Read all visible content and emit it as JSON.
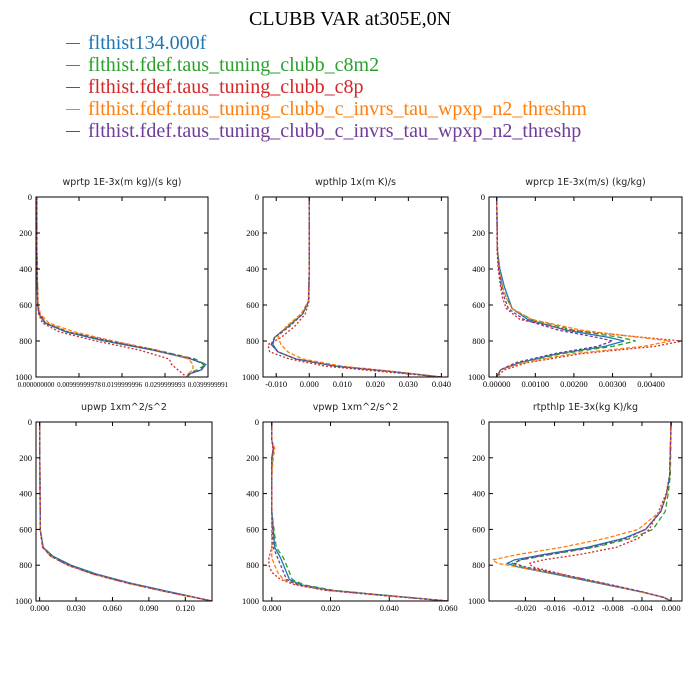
{
  "title": "CLUBB VAR at305E,0N",
  "legend": [
    {
      "label": "flthist134.000f",
      "color": "#1f77b4"
    },
    {
      "label": "flthist.fdef.taus_tuning_clubb_c8m2",
      "color": "#2ca02c"
    },
    {
      "label": "flthist.fdef.taus_tuning_clubb_c8p",
      "color": "#d62728"
    },
    {
      "label": "flthist.fdef.taus_tuning_clubb_c_invrs_tau_wpxp_n2_threshm",
      "color": "#ff7f0e"
    },
    {
      "label": "flthist.fdef.taus_tuning_clubb_c_invrs_tau_wpxp_n2_threshp",
      "color": "#6f3c97"
    }
  ],
  "chart_data": [
    {
      "type": "line",
      "title": "wprtp  1E-3x(m kg)/(s kg)",
      "xlim": [
        0,
        0.04
      ],
      "ylim": [
        1000,
        0
      ],
      "xticks": [
        0,
        0.01,
        0.02,
        0.03,
        0.04
      ],
      "xticklabels": [
        "0.000000000",
        "0.00999999978",
        "0.0199999996",
        "0.0299999993",
        "0.0399999991"
      ],
      "yticks": [
        0,
        200,
        400,
        600,
        800,
        1000
      ],
      "yticklabels": [
        "0",
        "200",
        "400",
        "600",
        "800",
        "1000"
      ],
      "y": [
        0,
        300,
        600,
        650,
        700,
        750,
        800,
        850,
        900,
        930,
        960,
        980,
        1000
      ],
      "series": [
        {
          "values": [
            0.0002,
            0.0002,
            0.0004,
            0.0007,
            0.002,
            0.007,
            0.016,
            0.027,
            0.036,
            0.0395,
            0.0385,
            0.036,
            0.035
          ]
        },
        {
          "values": [
            0.0002,
            0.0002,
            0.0004,
            0.0008,
            0.0023,
            0.0075,
            0.017,
            0.028,
            0.037,
            0.0395,
            0.0375,
            0.0355,
            0.035
          ]
        },
        {
          "values": [
            0.0002,
            0.0002,
            0.0004,
            0.0006,
            0.0015,
            0.0055,
            0.014,
            0.024,
            0.031,
            0.0315,
            0.033,
            0.034,
            0.035
          ]
        },
        {
          "values": [
            0.0002,
            0.0002,
            0.0005,
            0.001,
            0.003,
            0.009,
            0.018,
            0.028,
            0.0355,
            0.0365,
            0.0365,
            0.0355,
            0.035
          ]
        },
        {
          "values": [
            0.0002,
            0.0002,
            0.0004,
            0.0008,
            0.0022,
            0.0075,
            0.017,
            0.0275,
            0.0365,
            0.039,
            0.0385,
            0.036,
            0.035
          ]
        }
      ]
    },
    {
      "type": "line",
      "title": "wpthlp  1x(m K)/s",
      "xlim": [
        -0.014,
        0.042
      ],
      "ylim": [
        1000,
        0
      ],
      "xticks": [
        -0.01,
        0,
        0.01,
        0.02,
        0.03,
        0.04
      ],
      "xticklabels": [
        "-0.010",
        "0.000",
        "0.010",
        "0.020",
        "0.030",
        "0.040"
      ],
      "yticks": [
        0,
        200,
        400,
        600,
        800,
        1000
      ],
      "yticklabels": [
        "0",
        "200",
        "400",
        "600",
        "800",
        "1000"
      ],
      "y": [
        0,
        400,
        580,
        650,
        720,
        780,
        820,
        860,
        900,
        940,
        970,
        1000
      ],
      "series": [
        {
          "values": [
            0,
            0,
            -0.0002,
            -0.002,
            -0.0065,
            -0.0105,
            -0.011,
            -0.0095,
            -0.004,
            0.008,
            0.025,
            0.04
          ]
        },
        {
          "values": [
            0,
            0,
            -0.0002,
            -0.002,
            -0.0065,
            -0.0105,
            -0.0115,
            -0.0095,
            -0.004,
            0.008,
            0.025,
            0.04
          ]
        },
        {
          "values": [
            0,
            0,
            -0.0001,
            -0.0012,
            -0.0045,
            -0.0085,
            -0.0125,
            -0.012,
            -0.006,
            0.005,
            0.022,
            0.04
          ]
        },
        {
          "values": [
            0,
            0,
            -0.0003,
            -0.0025,
            -0.007,
            -0.0095,
            -0.0085,
            -0.0065,
            -0.002,
            0.01,
            0.026,
            0.04
          ]
        },
        {
          "values": [
            0,
            0,
            -0.0002,
            -0.002,
            -0.006,
            -0.0105,
            -0.0115,
            -0.0095,
            -0.004,
            0.008,
            0.025,
            0.04
          ]
        }
      ]
    },
    {
      "type": "line",
      "title": "wprcp  1E-3x(m/s) (kg/kg)",
      "xlim": [
        -0.0002,
        0.0048
      ],
      "ylim": [
        1000,
        0
      ],
      "xticks": [
        0,
        0.001,
        0.002,
        0.003,
        0.004
      ],
      "xticklabels": [
        "0.00000",
        "0.00100",
        "0.00200",
        "0.00300",
        "0.00400"
      ],
      "yticks": [
        0,
        200,
        400,
        600,
        800,
        1000
      ],
      "yticklabels": [
        "0",
        "200",
        "400",
        "600",
        "800",
        "1000"
      ],
      "y": [
        0,
        300,
        400,
        500,
        560,
        620,
        680,
        740,
        780,
        800,
        830,
        870,
        920,
        960,
        1000
      ],
      "series": [
        {
          "values": [
            0,
            2e-05,
            8e-05,
            0.0002,
            0.0003,
            0.0004,
            0.0008,
            0.0018,
            0.0029,
            0.0033,
            0.0028,
            0.0016,
            0.0006,
            0.0001,
            0
          ]
        },
        {
          "values": [
            0,
            2e-05,
            6e-05,
            0.00015,
            0.00025,
            0.0004,
            0.0009,
            0.002,
            0.0032,
            0.0036,
            0.003,
            0.0017,
            0.0006,
            0.0001,
            0
          ]
        },
        {
          "values": [
            0,
            1e-05,
            4e-05,
            0.0001,
            0.00015,
            0.00025,
            0.0006,
            0.0019,
            0.0038,
            0.0048,
            0.0041,
            0.0022,
            0.0008,
            0.0002,
            0
          ]
        },
        {
          "values": [
            0,
            2e-05,
            6e-05,
            0.00015,
            0.00025,
            0.0004,
            0.0009,
            0.0022,
            0.0037,
            0.0045,
            0.0038,
            0.002,
            0.0007,
            0.0001,
            0
          ]
        },
        {
          "values": [
            0,
            2e-05,
            5e-05,
            0.00012,
            0.0002,
            0.0003,
            0.0007,
            0.0016,
            0.0026,
            0.003,
            0.0026,
            0.0015,
            0.0005,
            0.0001,
            0
          ]
        }
      ]
    },
    {
      "type": "line",
      "title": "upwp  1xm^2/s^2",
      "xlim": [
        -0.003,
        0.142
      ],
      "ylim": [
        1000,
        0
      ],
      "xticks": [
        0,
        0.03,
        0.06,
        0.09,
        0.12
      ],
      "xticklabels": [
        "0.000",
        "0.030",
        "0.060",
        "0.090",
        "0.120"
      ],
      "yticks": [
        0,
        200,
        400,
        600,
        800,
        1000
      ],
      "yticklabels": [
        "0",
        "200",
        "400",
        "600",
        "800",
        "1000"
      ],
      "y": [
        0,
        600,
        700,
        750,
        800,
        850,
        900,
        950,
        1000
      ],
      "series": [
        {
          "values": [
            0,
            0.0005,
            0.003,
            0.011,
            0.026,
            0.047,
            0.075,
            0.108,
            0.142
          ]
        },
        {
          "values": [
            0,
            0.0005,
            0.0025,
            0.01,
            0.024,
            0.045,
            0.073,
            0.106,
            0.142
          ]
        },
        {
          "values": [
            0,
            0.0005,
            0.0025,
            0.009,
            0.023,
            0.044,
            0.072,
            0.105,
            0.142
          ]
        },
        {
          "values": [
            0,
            0.0005,
            0.0025,
            0.009,
            0.023,
            0.044,
            0.072,
            0.105,
            0.142
          ]
        },
        {
          "values": [
            0,
            0.0005,
            0.0025,
            0.0095,
            0.024,
            0.045,
            0.073,
            0.106,
            0.142
          ]
        }
      ]
    },
    {
      "type": "line",
      "title": "vpwp  1xm^2/s^2",
      "xlim": [
        -0.003,
        0.06
      ],
      "ylim": [
        1000,
        0
      ],
      "xticks": [
        0,
        0.02,
        0.04,
        0.06
      ],
      "xticklabels": [
        "0.000",
        "0.020",
        "0.040",
        "0.060"
      ],
      "yticks": [
        0,
        200,
        400,
        600,
        800,
        1000
      ],
      "yticklabels": [
        "0",
        "200",
        "400",
        "600",
        "800",
        "1000"
      ],
      "y": [
        0,
        100,
        150,
        200,
        300,
        500,
        700,
        760,
        800,
        840,
        880,
        910,
        940,
        970,
        1000
      ],
      "series": [
        {
          "values": [
            0,
            0,
            0.0006,
            0,
            0,
            0,
            0.001,
            0.003,
            0.004,
            0.005,
            0.006,
            0.01,
            0.02,
            0.04,
            0.06
          ]
        },
        {
          "values": [
            0,
            0,
            0.0005,
            0.0002,
            0,
            0,
            0.0015,
            0.004,
            0.005,
            0.006,
            0.007,
            0.011,
            0.021,
            0.04,
            0.06
          ]
        },
        {
          "values": [
            0,
            0,
            0.0004,
            0,
            0,
            0,
            0,
            -0.001,
            -0.001,
            0,
            0.003,
            0.008,
            0.018,
            0.038,
            0.06
          ]
        },
        {
          "values": [
            0,
            0,
            0.001,
            0.0005,
            0,
            0,
            0,
            0,
            0.001,
            0.002,
            0.004,
            0.009,
            0.019,
            0.039,
            0.06
          ]
        },
        {
          "values": [
            0,
            0,
            0.0005,
            0,
            0,
            0,
            0.0005,
            0.002,
            0.003,
            0.004,
            0.005,
            0.009,
            0.019,
            0.039,
            0.06
          ]
        }
      ]
    },
    {
      "type": "line",
      "title": "rtpthlp  1E-3x(kg K)/kg",
      "xlim": [
        -0.025,
        0.0015
      ],
      "ylim": [
        1000,
        0
      ],
      "xticks": [
        -0.02,
        -0.016,
        -0.012,
        -0.008,
        -0.004,
        0
      ],
      "xticklabels": [
        "-0.020",
        "-0.016",
        "-0.012",
        "-0.008",
        "-0.004",
        "0.000"
      ],
      "yticks": [
        0,
        200,
        400,
        600,
        800,
        1000
      ],
      "yticklabels": [
        "0",
        "200",
        "400",
        "600",
        "800",
        "1000"
      ],
      "y": [
        0,
        300,
        400,
        500,
        600,
        650,
        700,
        740,
        770,
        790,
        810,
        850,
        900,
        950,
        980,
        1000
      ],
      "series": [
        {
          "values": [
            0,
            -0.0002,
            -0.0006,
            -0.0014,
            -0.0035,
            -0.0065,
            -0.0115,
            -0.0175,
            -0.0215,
            -0.0225,
            -0.021,
            -0.016,
            -0.01,
            -0.004,
            -0.001,
            0
          ]
        },
        {
          "values": [
            0,
            -0.0001,
            -0.0004,
            -0.0008,
            -0.0025,
            -0.0055,
            -0.0105,
            -0.0165,
            -0.0205,
            -0.0218,
            -0.0205,
            -0.0155,
            -0.0095,
            -0.004,
            -0.001,
            0
          ]
        },
        {
          "values": [
            0,
            -0.0002,
            -0.0007,
            -0.0017,
            -0.003,
            -0.0045,
            -0.0075,
            -0.0125,
            -0.0175,
            -0.0195,
            -0.019,
            -0.015,
            -0.0095,
            -0.004,
            -0.001,
            0
          ]
        },
        {
          "values": [
            0,
            -0.0002,
            -0.0006,
            -0.0015,
            -0.0045,
            -0.009,
            -0.015,
            -0.021,
            -0.0245,
            -0.0238,
            -0.021,
            -0.0155,
            -0.0095,
            -0.004,
            -0.001,
            0
          ]
        },
        {
          "values": [
            0,
            -0.0002,
            -0.0006,
            -0.0014,
            -0.0035,
            -0.0062,
            -0.011,
            -0.0168,
            -0.0208,
            -0.0215,
            -0.02,
            -0.0152,
            -0.0093,
            -0.0038,
            -0.001,
            0
          ]
        }
      ]
    }
  ]
}
